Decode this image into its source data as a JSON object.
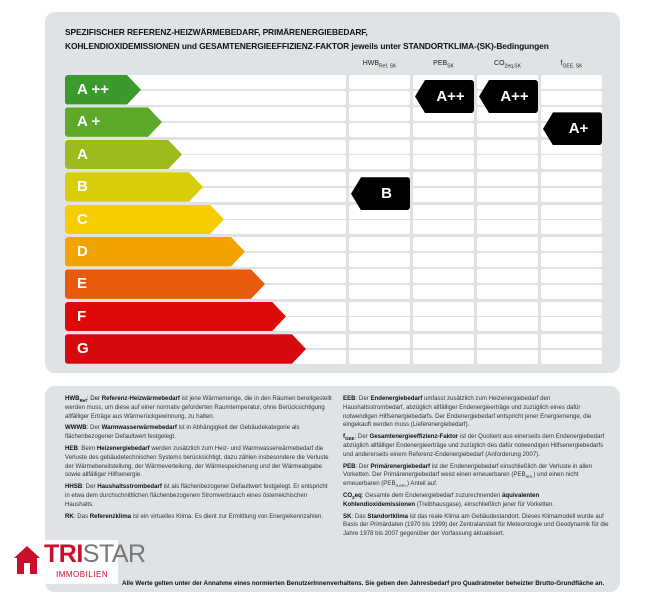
{
  "title_line1": "SPEZIFISCHER REFERENZ-HEIZWÄRMEBEDARF, PRIMÄRENERGIEBEDARF,",
  "title_line2": "KOHLENDIOXIDEMISSIONEN und GESAMTENERGIEEFFIZIENZ-FAKTOR jeweils unter STANDORTKLIMA-(SK)-Bedingungen",
  "classes": [
    {
      "label": "A ++",
      "color": "#3b9a2c"
    },
    {
      "label": "A +",
      "color": "#5ea82a"
    },
    {
      "label": "A",
      "color": "#9dbb1c"
    },
    {
      "label": "B",
      "color": "#d7cd0b"
    },
    {
      "label": "C",
      "color": "#f7cd00"
    },
    {
      "label": "D",
      "color": "#f2a300"
    },
    {
      "label": "E",
      "color": "#e85a0c"
    },
    {
      "label": "F",
      "color": "#de0a0a"
    },
    {
      "label": "G",
      "color": "#d8080f"
    }
  ],
  "columns": [
    {
      "label": "HWB",
      "sub": "Ref, SK",
      "rating": "B",
      "rating_index": 3
    },
    {
      "label": "PEB",
      "sub": "SK",
      "rating": "A++",
      "rating_index": 0
    },
    {
      "label": "CO",
      "sub": "2eq,SK",
      "rating": "A++",
      "rating_index": 0
    },
    {
      "label": "f",
      "sub": "GEE, SK",
      "rating": "A+",
      "rating_index": 1
    }
  ],
  "marker_color": "#000000",
  "legend": {
    "hwb": {
      "abbr": "HWB",
      "sub": "Ref",
      "pre": ": Der ",
      "bold": "Referenz-Heizwärmebedarf",
      "post": " ist jene Wärmemenge, die in den Räumen bereitgestellt werden muss, um diese auf einer normativ geforderten Raumtemperatur, ohne Berücksichtigung allfälliger Erträge aus Wärmerückgewinnung, zu halten."
    },
    "wwwb": {
      "abbr": "WWWB",
      "pre": ": Der ",
      "bold": "Warmwasserwärmebedarf",
      "post": " ist in Abhängigkeit der Gebäudekategorie als flächenbezogener Defaultwert festgelegt."
    },
    "heb": {
      "abbr": "HEB",
      "pre": ": Beim ",
      "bold": "Heizenergiebedarf",
      "post": " werden zusätzlich zum Heiz- und Warmwasserwärmebedarf die Verluste des gebäudetechnischen Systems berücksichtigt, dazu zählen insbesondere die Verluste der Wärmebereitstellung, der Wärmeverteilung, der Wärmespeicherung und der Wärmeabgabe sowie allfälliger Hilfsenergie."
    },
    "hhsb": {
      "abbr": "HHSB",
      "pre": ": Der ",
      "bold": "Haushaltsstrombedarf",
      "post": " ist als flächenbezogener Defaultwert festgelegt. Er entspricht in etwa dem durchschnittlichen flächenbezogenen Stromverbrauch eines österreichischen Haushalts."
    },
    "rk": {
      "abbr": "RK",
      "pre": ": Das ",
      "bold": "Referenzklima",
      "post": " ist ein virtuelles Klima. Es dient zur Ermittlung von Energiekennzahlen."
    },
    "eeb": {
      "abbr": "EEB",
      "pre": ": Der ",
      "bold": "Endenergiebedarf",
      "post": " umfasst zusätzlich zum Heizenergiebedarf den Haushaltsstrombedarf, abzüglich allfälliger Endenergieerträge und zuzüglich eines dafür notwendigen Hilfsenergiebedarfs. Der Endenergiebedarf entspricht jener Energiemenge, die eingekauft werden muss (Lieferenergiebedarf)."
    },
    "fgee": {
      "abbr": "f",
      "sub": "GEE",
      "pre": ": Der ",
      "bold": "Gesamtenergieeffizienz-Faktor",
      "post": " ist der Quotient aus einerseits dem Endenergiebedarf abzüglich allfälliger Endenergieerträge und zuzüglich des dafür notwendigen Hilfsenergiebedarfs und andererseits einem Referenz-Endenergiebedarf (Anforderung 2007)."
    },
    "peb": {
      "abbr": "PEB",
      "pre": ": Der ",
      "bold": "Primärenergiebedarf",
      "post1": " ist der Endenergiebedarf einschließlich der Verluste in allen Vorketten. Der Primärenergiebedarf weist einen erneuerbaren (PEB",
      "sub1": "ern.",
      "post2": ") und einen nicht erneuerbaren (PEB",
      "sub2": "n.ern.",
      "post3": ") Anteil auf."
    },
    "co2": {
      "abbr": "CO",
      "sub": "2",
      "abbr2": "eq",
      "pre": ": Gesamte dem Endenergiebedarf zuzurechnenden ",
      "bold": "äquivalenten Kohlendioxidemissionen",
      "post": " (Treibhausgase), einschließlich jener für Vorketten."
    },
    "sk": {
      "abbr": "SK",
      "pre": ": Das ",
      "bold": "Standortklima",
      "post": " ist das reale Klima am Gebäudestandort. Dieses Klimamodell wurde auf Basis der Primärdaten (1970 bis 1999) der Zentralanstalt für Meteorologie und Geodynamik für die Jahre 1978 bis 2007 gegenüber der Vorfassung aktualisiert."
    }
  },
  "footer": "Alle Werte gelten unter der Annahme eines normierten BenutzerInnenverhaltens. Sie geben den Jahresbedarf pro Quadratmeter beheizter Brutto-Grundfläche an.",
  "logo": {
    "name_bold": "TRI",
    "name_rest": "STAR",
    "sub": "IMMOBILIEN",
    "color": "#c8102e"
  }
}
